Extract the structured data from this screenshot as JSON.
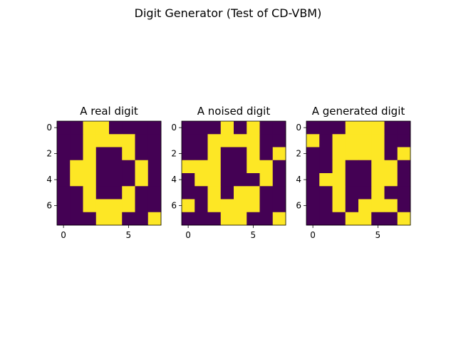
{
  "figure": {
    "suptitle": "Digit Generator (Test of CD-VBM)"
  },
  "colors": {
    "low": "#440154",
    "high": "#fde725",
    "background": "#ffffff",
    "axis": "#000000"
  },
  "chart_data": [
    {
      "type": "heatmap",
      "title": "A real digit",
      "xticks": [
        0,
        5
      ],
      "yticks": [
        0,
        2,
        4,
        6
      ],
      "xlim": [
        -0.5,
        7.5
      ],
      "ylim": [
        7.5,
        -0.5
      ],
      "matrix": [
        [
          0,
          0,
          1,
          1,
          0,
          0,
          0,
          0
        ],
        [
          0,
          0,
          1,
          1,
          1,
          1,
          0,
          0
        ],
        [
          0,
          0,
          1,
          0,
          0,
          1,
          0,
          0
        ],
        [
          0,
          1,
          1,
          0,
          0,
          0,
          1,
          0
        ],
        [
          0,
          1,
          1,
          0,
          0,
          0,
          1,
          0
        ],
        [
          0,
          0,
          1,
          0,
          0,
          1,
          0,
          0
        ],
        [
          0,
          0,
          1,
          1,
          1,
          1,
          0,
          0
        ],
        [
          0,
          0,
          0,
          1,
          1,
          0,
          0,
          1
        ]
      ]
    },
    {
      "type": "heatmap",
      "title": "A noised digit",
      "xticks": [
        0,
        5
      ],
      "yticks": [
        0,
        2,
        4,
        6
      ],
      "xlim": [
        -0.5,
        7.5
      ],
      "ylim": [
        7.5,
        -0.5
      ],
      "matrix": [
        [
          0,
          0,
          0,
          1,
          0,
          1,
          0,
          0
        ],
        [
          0,
          0,
          1,
          1,
          1,
          1,
          0,
          0
        ],
        [
          0,
          0,
          1,
          0,
          0,
          1,
          0,
          1
        ],
        [
          1,
          1,
          1,
          0,
          0,
          1,
          1,
          0
        ],
        [
          0,
          1,
          1,
          0,
          0,
          0,
          1,
          0
        ],
        [
          0,
          0,
          1,
          0,
          1,
          1,
          0,
          0
        ],
        [
          1,
          0,
          1,
          1,
          1,
          1,
          0,
          0
        ],
        [
          0,
          0,
          0,
          1,
          1,
          0,
          0,
          1
        ]
      ]
    },
    {
      "type": "heatmap",
      "title": "A generated digit",
      "xticks": [
        0,
        5
      ],
      "yticks": [
        0,
        2,
        4,
        6
      ],
      "xlim": [
        -0.5,
        7.5
      ],
      "ylim": [
        7.5,
        -0.5
      ],
      "matrix": [
        [
          0,
          0,
          0,
          1,
          1,
          1,
          0,
          0
        ],
        [
          1,
          0,
          1,
          1,
          1,
          1,
          0,
          0
        ],
        [
          0,
          0,
          1,
          1,
          1,
          1,
          0,
          1
        ],
        [
          0,
          0,
          1,
          0,
          0,
          1,
          1,
          0
        ],
        [
          0,
          1,
          1,
          0,
          0,
          1,
          1,
          0
        ],
        [
          0,
          0,
          1,
          0,
          0,
          1,
          0,
          0
        ],
        [
          0,
          0,
          1,
          0,
          1,
          1,
          1,
          0
        ],
        [
          0,
          0,
          0,
          1,
          1,
          0,
          0,
          1
        ]
      ]
    }
  ]
}
